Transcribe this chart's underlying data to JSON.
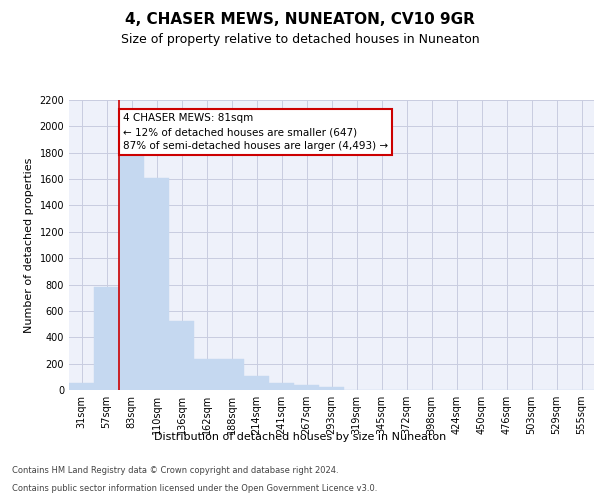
{
  "title": "4, CHASER MEWS, NUNEATON, CV10 9GR",
  "subtitle": "Size of property relative to detached houses in Nuneaton",
  "xlabel": "Distribution of detached houses by size in Nuneaton",
  "ylabel": "Number of detached properties",
  "categories": [
    "31sqm",
    "57sqm",
    "83sqm",
    "110sqm",
    "136sqm",
    "162sqm",
    "188sqm",
    "214sqm",
    "241sqm",
    "267sqm",
    "293sqm",
    "319sqm",
    "345sqm",
    "372sqm",
    "398sqm",
    "424sqm",
    "450sqm",
    "476sqm",
    "503sqm",
    "529sqm",
    "555sqm"
  ],
  "values": [
    50,
    780,
    1820,
    1610,
    520,
    235,
    235,
    105,
    55,
    40,
    20,
    0,
    0,
    0,
    0,
    0,
    0,
    0,
    0,
    0,
    0
  ],
  "bar_color": "#c5d8f0",
  "bar_edge_color": "#c5d8f0",
  "red_line_x": 1.5,
  "annotation_text": "4 CHASER MEWS: 81sqm\n← 12% of detached houses are smaller (647)\n87% of semi-detached houses are larger (4,493) →",
  "annotation_box_color": "#ffffff",
  "annotation_box_edge": "#cc0000",
  "red_line_color": "#cc0000",
  "ylim": [
    0,
    2200
  ],
  "yticks": [
    0,
    200,
    400,
    600,
    800,
    1000,
    1200,
    1400,
    1600,
    1800,
    2000,
    2200
  ],
  "grid_color": "#c8cce0",
  "background_color": "#eef1fa",
  "footer_line1": "Contains HM Land Registry data © Crown copyright and database right 2024.",
  "footer_line2": "Contains public sector information licensed under the Open Government Licence v3.0.",
  "title_fontsize": 11,
  "subtitle_fontsize": 9,
  "axis_label_fontsize": 8,
  "tick_fontsize": 7,
  "footer_fontsize": 6
}
